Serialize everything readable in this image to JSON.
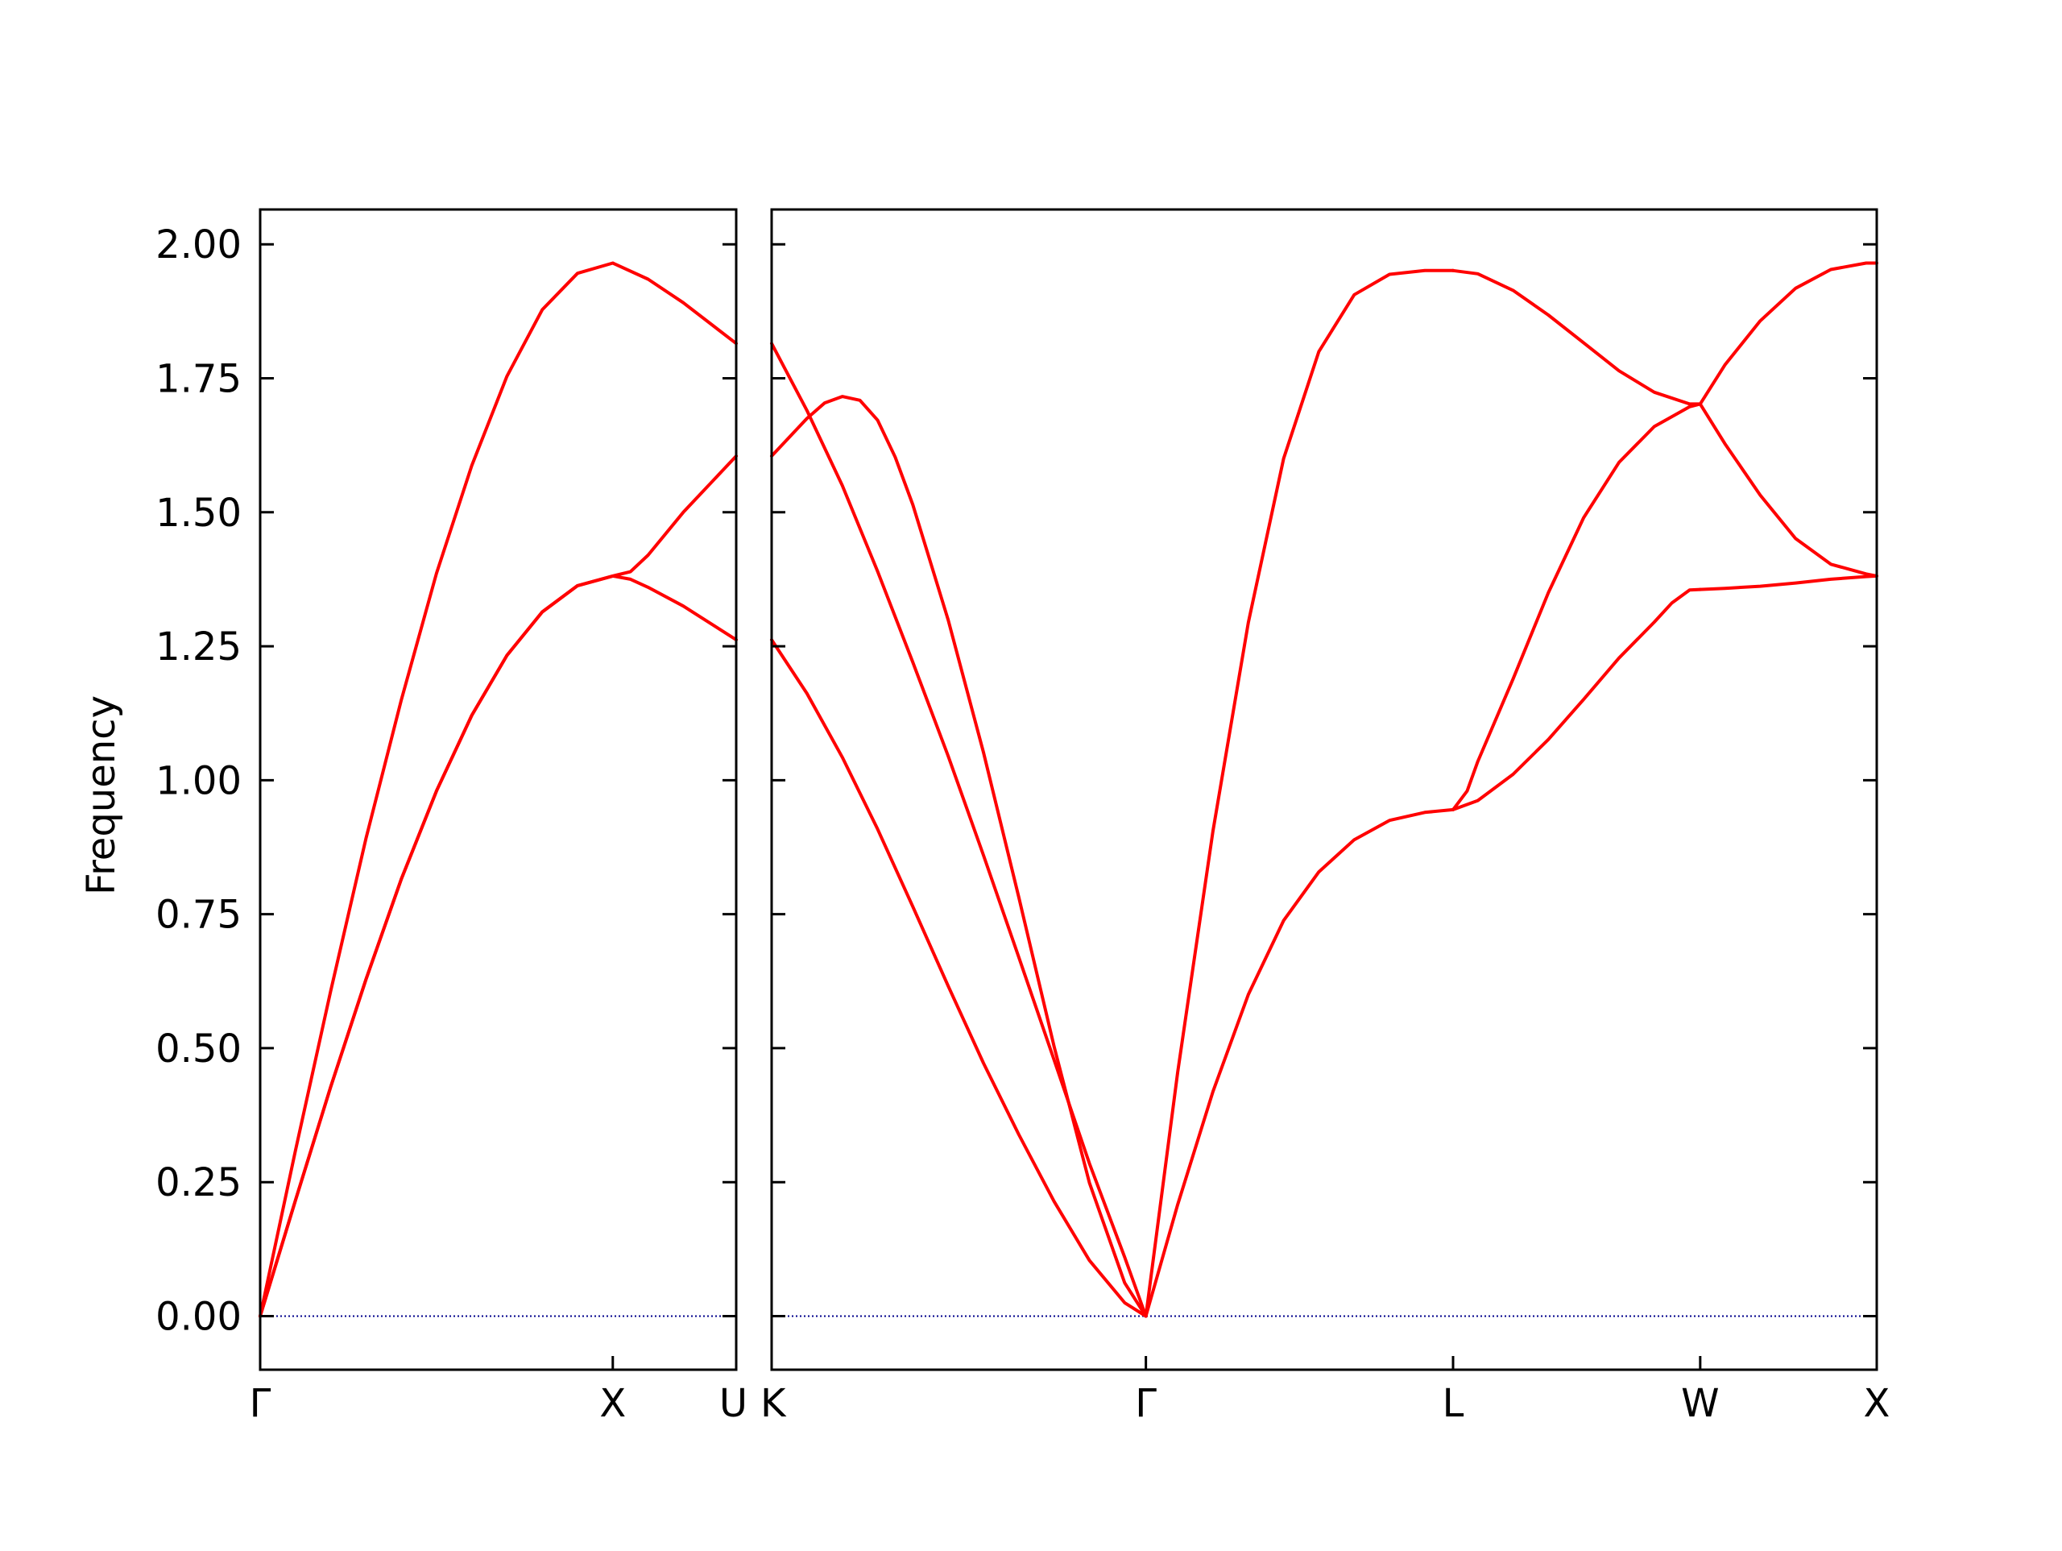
{
  "chart_data": {
    "type": "line",
    "ylabel": "Frequency",
    "ylim": [
      -0.1,
      2.065
    ],
    "yticks": [
      "0.00",
      "0.25",
      "0.50",
      "0.75",
      "1.00",
      "1.25",
      "1.50",
      "1.75",
      "2.00"
    ],
    "ytick_values": [
      0,
      0.25,
      0.5,
      0.75,
      1.0,
      1.25,
      1.5,
      1.75,
      2.0
    ],
    "line_color": "#ff0000",
    "zero_line_color": "#00008b",
    "grid": false,
    "panels": [
      {
        "name": "panel-1",
        "xlim": [
          0,
          1.35
        ],
        "xticks": [
          {
            "x": 0,
            "label": "Γ"
          },
          {
            "x": 1.0,
            "label": "X"
          },
          {
            "x": 1.35,
            "label": "U"
          }
        ],
        "bands": [
          {
            "x": [
              0,
              0.1,
              0.2,
              0.3,
              0.4,
              0.5,
              0.6,
              0.7,
              0.8,
              0.9,
              1.0,
              1.1,
              1.2,
              1.35
            ],
            "y": [
              0,
              0.309,
              0.607,
              0.891,
              1.149,
              1.386,
              1.587,
              1.754,
              1.878,
              1.946,
              1.965,
              1.935,
              1.891,
              1.815
            ]
          },
          {
            "x": [
              0,
              0.1,
              0.2,
              0.3,
              0.4,
              0.5,
              0.6,
              0.7,
              0.8,
              0.9,
              1.0,
              1.05,
              1.1,
              1.2,
              1.35
            ],
            "y": [
              0,
              0.216,
              0.428,
              0.628,
              0.815,
              0.98,
              1.121,
              1.233,
              1.314,
              1.363,
              1.381,
              1.389,
              1.42,
              1.5,
              1.605
            ]
          },
          {
            "x": [
              0,
              0.1,
              0.2,
              0.3,
              0.4,
              0.5,
              0.6,
              0.7,
              0.8,
              0.9,
              1.0,
              1.05,
              1.1,
              1.2,
              1.35
            ],
            "y": [
              0,
              0.216,
              0.428,
              0.628,
              0.815,
              0.98,
              1.121,
              1.233,
              1.314,
              1.363,
              1.381,
              1.375,
              1.36,
              1.325,
              1.262
            ]
          }
        ]
      },
      {
        "name": "panel-2",
        "xlim": [
          0,
          3.13
        ],
        "xticks": [
          {
            "x": 0,
            "label": "K"
          },
          {
            "x": 1.06,
            "label": "Γ"
          },
          {
            "x": 1.93,
            "label": "L"
          },
          {
            "x": 2.63,
            "label": "W"
          },
          {
            "x": 3.13,
            "label": "X"
          }
        ],
        "bands": [
          {
            "x": [
              0,
              0.1,
              0.15,
              0.2,
              0.25,
              0.3,
              0.35,
              0.4,
              0.5,
              0.6,
              0.7,
              0.8,
              0.9,
              1.0,
              1.06
            ],
            "y": [
              1.605,
              1.675,
              1.704,
              1.716,
              1.709,
              1.672,
              1.603,
              1.514,
              1.299,
              1.052,
              0.782,
              0.503,
              0.249,
              0.062,
              0
            ]
          },
          {
            "x": [
              0,
              0.1,
              0.2,
              0.3,
              0.4,
              0.5,
              0.6,
              0.7,
              0.8,
              0.9,
              1.0,
              1.06
            ],
            "y": [
              1.815,
              1.69,
              1.55,
              1.39,
              1.22,
              1.045,
              0.86,
              0.67,
              0.478,
              0.285,
              0.11,
              0
            ]
          },
          {
            "x": [
              0,
              0.1,
              0.2,
              0.3,
              0.4,
              0.5,
              0.6,
              0.7,
              0.8,
              0.9,
              1.0,
              1.06
            ],
            "y": [
              1.262,
              1.162,
              1.043,
              0.909,
              0.764,
              0.616,
              0.472,
              0.339,
              0.214,
              0.104,
              0.025,
              0
            ]
          },
          {
            "x": [
              1.06,
              1.15,
              1.25,
              1.35,
              1.45,
              1.55,
              1.65,
              1.75,
              1.85,
              1.93
            ],
            "y": [
              0,
              0.455,
              0.905,
              1.294,
              1.6,
              1.8,
              1.906,
              1.944,
              1.951,
              1.951
            ]
          },
          {
            "x": [
              1.06,
              1.15,
              1.25,
              1.35,
              1.45,
              1.55,
              1.65,
              1.75,
              1.85,
              1.93
            ],
            "y": [
              0,
              0.208,
              0.419,
              0.6,
              0.738,
              0.829,
              0.889,
              0.925,
              0.94,
              0.945
            ]
          },
          {
            "x": [
              1.93,
              2.0,
              2.1,
              2.2,
              2.3,
              2.4,
              2.5,
              2.6,
              2.63
            ],
            "y": [
              1.951,
              1.945,
              1.914,
              1.868,
              1.816,
              1.764,
              1.724,
              1.702,
              1.702
            ]
          },
          {
            "x": [
              1.93,
              1.97,
              2.0,
              2.1,
              2.2,
              2.3,
              2.4,
              2.5,
              2.6,
              2.63
            ],
            "y": [
              0.945,
              0.98,
              1.035,
              1.189,
              1.35,
              1.49,
              1.593,
              1.66,
              1.697,
              1.702
            ]
          },
          {
            "x": [
              1.93,
              2.0,
              2.1,
              2.2,
              2.3,
              2.4,
              2.5,
              2.55,
              2.6,
              2.63
            ],
            "y": [
              0.945,
              0.962,
              1.011,
              1.076,
              1.151,
              1.228,
              1.295,
              1.331,
              1.355,
              1.356
            ]
          },
          {
            "x": [
              2.63,
              2.7,
              2.8,
              2.9,
              3.0,
              3.1,
              3.13
            ],
            "y": [
              1.702,
              1.775,
              1.857,
              1.918,
              1.953,
              1.965,
              1.965
            ]
          },
          {
            "x": [
              2.63,
              2.7,
              2.8,
              2.9,
              3.0,
              3.1,
              3.13
            ],
            "y": [
              1.702,
              1.628,
              1.532,
              1.451,
              1.403,
              1.385,
              1.381
            ]
          },
          {
            "x": [
              2.63,
              2.7,
              2.8,
              2.9,
              3.0,
              3.1,
              3.13
            ],
            "y": [
              1.356,
              1.358,
              1.362,
              1.368,
              1.375,
              1.38,
              1.381
            ]
          }
        ]
      }
    ]
  }
}
